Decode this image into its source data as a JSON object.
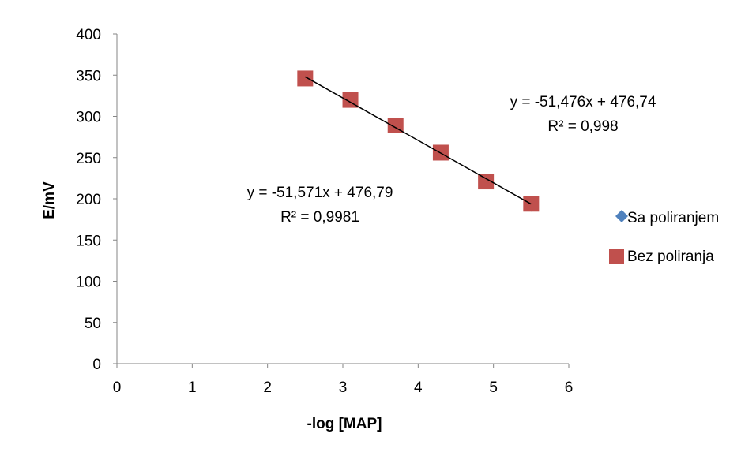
{
  "chart_data": {
    "type": "scatter",
    "xlabel": "-log [MAP]",
    "ylabel": "E/mV",
    "xlim": [
      0,
      6
    ],
    "ylim": [
      0,
      400
    ],
    "xticks": [
      "0",
      "1",
      "2",
      "3",
      "4",
      "5",
      "6"
    ],
    "yticks": [
      "0",
      "50",
      "100",
      "150",
      "200",
      "250",
      "300",
      "350",
      "400"
    ],
    "grid": false,
    "legend_position": "right",
    "series": [
      {
        "name": "Sa poliranjem",
        "marker": "diamond",
        "color": "#4f81bd",
        "x": [
          2.5,
          3.1,
          3.7,
          4.3,
          4.9,
          5.5
        ],
        "y": [
          346,
          320,
          288,
          256,
          221,
          193
        ]
      },
      {
        "name": "Bez poliranja",
        "marker": "square",
        "color": "#c0504d",
        "x": [
          2.5,
          3.1,
          3.7,
          4.3,
          4.9,
          5.5
        ],
        "y": [
          346,
          320,
          289,
          256,
          221,
          194
        ]
      }
    ],
    "trendline": {
      "slope": -51.476,
      "intercept": 476.74,
      "x_range": [
        2.5,
        5.5
      ],
      "color": "#000000"
    },
    "annotations": [
      {
        "line1": "y = -51,476x + 476,74",
        "line2": "R² = 0,998"
      },
      {
        "line1": "y = -51,571x + 476,79",
        "line2": "R² = 0,9981"
      }
    ]
  }
}
